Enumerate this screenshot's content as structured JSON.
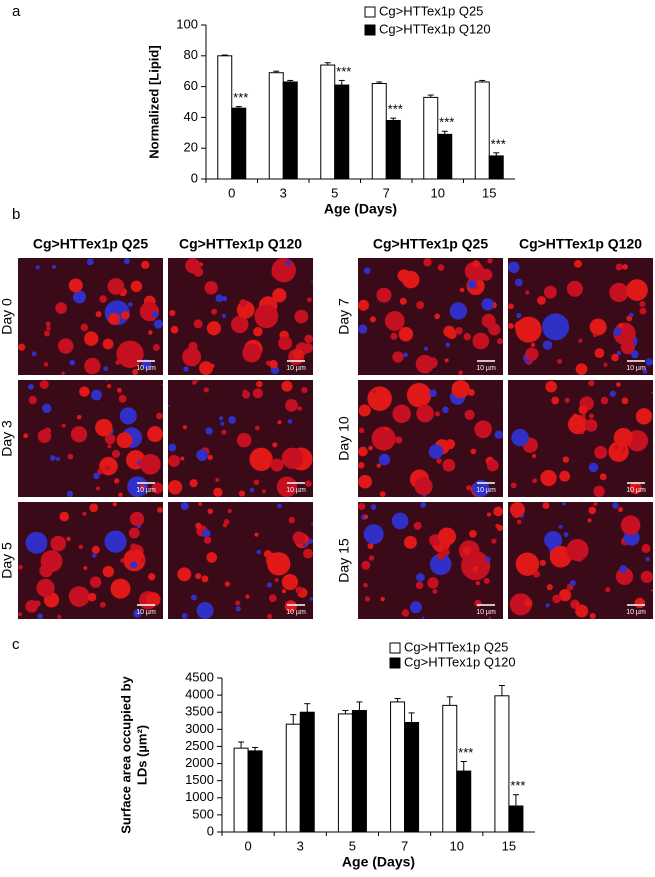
{
  "chart_data": [
    {
      "type": "bar",
      "panel": "a",
      "ylabel": [
        "Normalized [Lipid]"
      ],
      "xlabel": "Age (Days)",
      "categories": [
        "0",
        "3",
        "5",
        "7",
        "10",
        "15"
      ],
      "series": [
        {
          "name": "Cg>HTTex1p Q25",
          "color": "#ffffff",
          "values": [
            80,
            69,
            74,
            62,
            53,
            63
          ],
          "errors": [
            0.5,
            1,
            1.5,
            1,
            1.5,
            1
          ]
        },
        {
          "name": "Cg>HTTex1p Q120",
          "color": "#000000",
          "values": [
            46,
            63,
            61,
            38,
            29,
            15
          ],
          "errors": [
            1,
            1,
            3,
            1.5,
            2,
            2
          ],
          "significance": [
            "***",
            null,
            "***",
            "***",
            "***",
            "***"
          ]
        }
      ],
      "ylim": [
        0,
        100
      ],
      "yticks": [
        0,
        20,
        40,
        60,
        80,
        100
      ]
    },
    {
      "type": "bar",
      "panel": "c",
      "ylabel": [
        "Surface area occupied by",
        "LDs (µm²)"
      ],
      "xlabel": "Age (Days)",
      "categories": [
        "0",
        "3",
        "5",
        "7",
        "10",
        "15"
      ],
      "series": [
        {
          "name": "Cg>HTTex1p Q25",
          "color": "#ffffff",
          "values": [
            2450,
            3150,
            3450,
            3800,
            3700,
            3980
          ],
          "errors": [
            180,
            280,
            100,
            100,
            250,
            300
          ]
        },
        {
          "name": "Cg>HTTex1p Q120",
          "color": "#000000",
          "values": [
            2370,
            3500,
            3550,
            3200,
            1780,
            760
          ],
          "errors": [
            100,
            250,
            250,
            280,
            280,
            330
          ],
          "significance": [
            null,
            null,
            null,
            null,
            "***",
            "***"
          ]
        }
      ],
      "ylim": [
        0,
        4500
      ],
      "yticks": [
        0,
        500,
        1000,
        1500,
        2000,
        2500,
        3000,
        3500,
        4000,
        4500
      ]
    }
  ],
  "images": {
    "panel": "b",
    "headers": [
      "Cg>HTTex1p Q25",
      "Cg>HTTex1p Q120",
      "Cg>HTTex1p Q25",
      "Cg>HTTex1p Q120"
    ],
    "rows": [
      "Day 0",
      "Day 3",
      "Day 5",
      "Day 7",
      "Day 10",
      "Day 15"
    ],
    "scale_bar": "10 µm"
  }
}
